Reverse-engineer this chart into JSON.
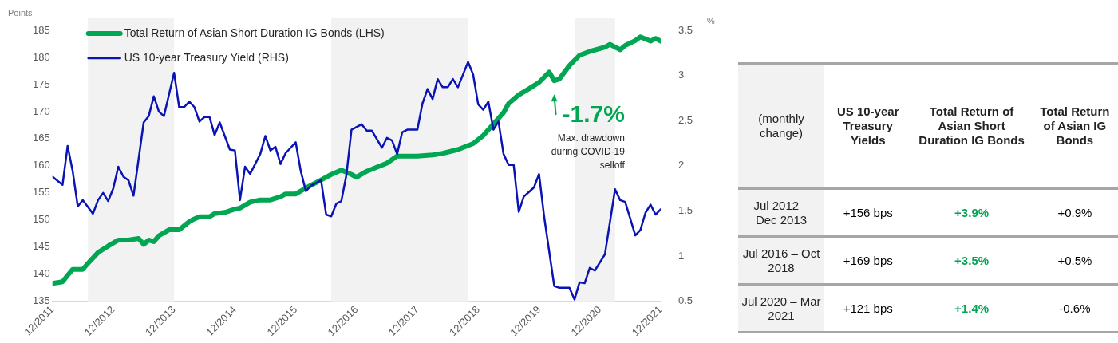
{
  "chart_data": [
    {
      "type": "line",
      "ylabel": "Points",
      "y2label": "%",
      "xlim": [
        "2011-12",
        "2021-12"
      ],
      "xticks": [
        {
          "value": "2011-12",
          "label": "12/2011"
        },
        {
          "value": "2012-12",
          "label": "12/2012"
        },
        {
          "value": "2013-12",
          "label": "12/2013"
        },
        {
          "value": "2014-12",
          "label": "12/2014"
        },
        {
          "value": "2015-12",
          "label": "12/2015"
        },
        {
          "value": "2016-12",
          "label": "12/2016"
        },
        {
          "value": "2017-12",
          "label": "12/2017"
        },
        {
          "value": "2018-12",
          "label": "12/2018"
        },
        {
          "value": "2019-12",
          "label": "12/2019"
        },
        {
          "value": "2020-12",
          "label": "12/2020"
        },
        {
          "value": "2021-12",
          "label": "12/2021"
        }
      ],
      "ylim": [
        135,
        185
      ],
      "yticks": [
        135,
        140,
        145,
        150,
        155,
        160,
        165,
        170,
        175,
        180,
        185
      ],
      "y2lim": [
        0.5,
        3.5
      ],
      "y2ticks": [
        0.5,
        1,
        1.5,
        2,
        2.5,
        3,
        3.5
      ],
      "legend": "top left",
      "series": [
        {
          "name": "Total Return of Asian Short Duration IG Bonds (LHS)",
          "color": "#00a651",
          "x": [
            "2011-12",
            "2012-02",
            "2012-03",
            "2012-04",
            "2012-06",
            "2012-07",
            "2012-09",
            "2012-11",
            "2013-01",
            "2013-03",
            "2013-05",
            "2013-06",
            "2013-07",
            "2013-08",
            "2013-09",
            "2013-11",
            "2014-01",
            "2014-03",
            "2014-04",
            "2014-05",
            "2014-07",
            "2014-08",
            "2014-10",
            "2014-12",
            "2015-01",
            "2015-03",
            "2015-05",
            "2015-07",
            "2015-09",
            "2015-10",
            "2015-12",
            "2016-02",
            "2016-05",
            "2016-07",
            "2016-09",
            "2016-11",
            "2016-12",
            "2017-02",
            "2017-06",
            "2017-08",
            "2017-12",
            "2018-03",
            "2018-05",
            "2018-08",
            "2018-11",
            "2019-01",
            "2019-03",
            "2019-05",
            "2019-06",
            "2019-08",
            "2019-10",
            "2019-12",
            "2020-02",
            "2020-03",
            "2020-04",
            "2020-06",
            "2020-08",
            "2020-10",
            "2021-01",
            "2021-02",
            "2021-04",
            "2021-05",
            "2021-07",
            "2021-08",
            "2021-10",
            "2021-11",
            "2021-12"
          ],
          "values": [
            138.3,
            138.6,
            139.8,
            140.9,
            140.9,
            142.0,
            144.0,
            145.2,
            146.3,
            146.3,
            146.6,
            145.5,
            146.3,
            146.0,
            147.1,
            148.2,
            148.2,
            149.7,
            150.2,
            150.6,
            150.6,
            151.2,
            151.4,
            152.0,
            152.2,
            153.3,
            153.7,
            153.7,
            154.3,
            154.8,
            154.8,
            155.9,
            157.4,
            158.4,
            159.2,
            158.4,
            157.9,
            159.0,
            160.5,
            161.8,
            161.8,
            162.0,
            162.3,
            163.0,
            164.1,
            165.6,
            167.7,
            169.8,
            171.5,
            173.1,
            174.2,
            175.4,
            177.3,
            175.7,
            176.0,
            178.5,
            180.4,
            181.1,
            181.9,
            182.4,
            181.4,
            182.2,
            183.1,
            183.8,
            183.0,
            183.5,
            183.0
          ]
        },
        {
          "name": "US 10-year Treasury Yield (RHS)",
          "color": "#0a14b4",
          "axis": "y2",
          "x": [
            "2011-12",
            "2012-02",
            "2012-03",
            "2012-04",
            "2012-05",
            "2012-06",
            "2012-08",
            "2012-09",
            "2012-10",
            "2012-11",
            "2012-12",
            "2013-01",
            "2013-02",
            "2013-03",
            "2013-04",
            "2013-06",
            "2013-07",
            "2013-08",
            "2013-09",
            "2013-10",
            "2013-12",
            "2014-01",
            "2014-02",
            "2014-03",
            "2014-04",
            "2014-05",
            "2014-06",
            "2014-07",
            "2014-08",
            "2014-09",
            "2014-11",
            "2014-12",
            "2015-01",
            "2015-02",
            "2015-03",
            "2015-05",
            "2015-06",
            "2015-07",
            "2015-08",
            "2015-09",
            "2015-10",
            "2015-12",
            "2016-01",
            "2016-02",
            "2016-03",
            "2016-05",
            "2016-06",
            "2016-07",
            "2016-08",
            "2016-09",
            "2016-10",
            "2016-11",
            "2017-01",
            "2017-02",
            "2017-03",
            "2017-05",
            "2017-06",
            "2017-07",
            "2017-08",
            "2017-09",
            "2017-10",
            "2017-12",
            "2018-01",
            "2018-02",
            "2018-03",
            "2018-04",
            "2018-05",
            "2018-06",
            "2018-07",
            "2018-08",
            "2018-10",
            "2018-11",
            "2018-12",
            "2019-01",
            "2019-02",
            "2019-03",
            "2019-04",
            "2019-05",
            "2019-06",
            "2019-07",
            "2019-08",
            "2019-09",
            "2019-10",
            "2019-11",
            "2019-12",
            "2020-01",
            "2020-03",
            "2020-04",
            "2020-06",
            "2020-07",
            "2020-08",
            "2020-09",
            "2020-10",
            "2020-11",
            "2021-01",
            "2021-03",
            "2021-04",
            "2021-05",
            "2021-07",
            "2021-08",
            "2021-09",
            "2021-10",
            "2021-11",
            "2021-12"
          ],
          "values": [
            1.88,
            1.79,
            2.22,
            1.94,
            1.55,
            1.62,
            1.47,
            1.62,
            1.7,
            1.61,
            1.75,
            1.99,
            1.88,
            1.84,
            1.67,
            2.48,
            2.55,
            2.77,
            2.6,
            2.55,
            3.03,
            2.65,
            2.65,
            2.71,
            2.65,
            2.49,
            2.54,
            2.54,
            2.34,
            2.48,
            2.18,
            2.17,
            1.62,
            1.99,
            1.91,
            2.13,
            2.33,
            2.17,
            2.21,
            2.02,
            2.14,
            2.26,
            1.94,
            1.72,
            1.78,
            1.84,
            1.46,
            1.44,
            1.58,
            1.61,
            1.9,
            2.4,
            2.46,
            2.39,
            2.39,
            2.2,
            2.31,
            2.28,
            2.13,
            2.37,
            2.4,
            2.4,
            2.69,
            2.85,
            2.74,
            2.96,
            2.87,
            2.87,
            2.96,
            2.87,
            3.15,
            3.01,
            2.68,
            2.62,
            2.71,
            2.4,
            2.49,
            2.13,
            2.01,
            2.01,
            1.49,
            1.66,
            1.71,
            1.76,
            1.91,
            1.44,
            0.67,
            0.65,
            0.65,
            0.52,
            0.71,
            0.7,
            0.87,
            0.84,
            1.02,
            1.74,
            1.62,
            1.6,
            1.23,
            1.29,
            1.48,
            1.57,
            1.46,
            1.52
          ]
        }
      ],
      "bands": [
        {
          "axis": "x",
          "from": "2012-07",
          "to": "2013-12",
          "color": "#f2f2f2"
        },
        {
          "axis": "x",
          "from": "2016-07",
          "to": "2018-10",
          "color": "#f2f2f2"
        },
        {
          "axis": "x",
          "from": "2020-07",
          "to": "2021-03",
          "color": "#f2f2f2"
        }
      ],
      "annotations": [
        {
          "text": "-1.7%",
          "x": "2020-03",
          "y": 175.7
        },
        "Max. drawdown during COVID-19 selloff"
      ]
    },
    {
      "type": "other",
      "ylabel": "(monthly change)",
      "categories": [
        "US 10-year Treasury Yields",
        "Total Return of Asian Short Duration IG Bonds",
        "Total Return of Asian IG Bonds"
      ],
      "y_categories": [
        "Jul 2012 – Dec 2013",
        "Jul 2016 – Oct 2018",
        "Jul 2020 – Mar 2021"
      ],
      "cell_labels": [
        [
          "+156 bps",
          "+3.9%",
          "+0.9%"
        ],
        [
          "+169 bps",
          "+3.5%",
          "+0.5%"
        ],
        [
          "+121 bps",
          "+1.4%",
          "-0.6%"
        ]
      ],
      "colors": [
        "#000000",
        "#00a651",
        "#000000"
      ]
    }
  ]
}
